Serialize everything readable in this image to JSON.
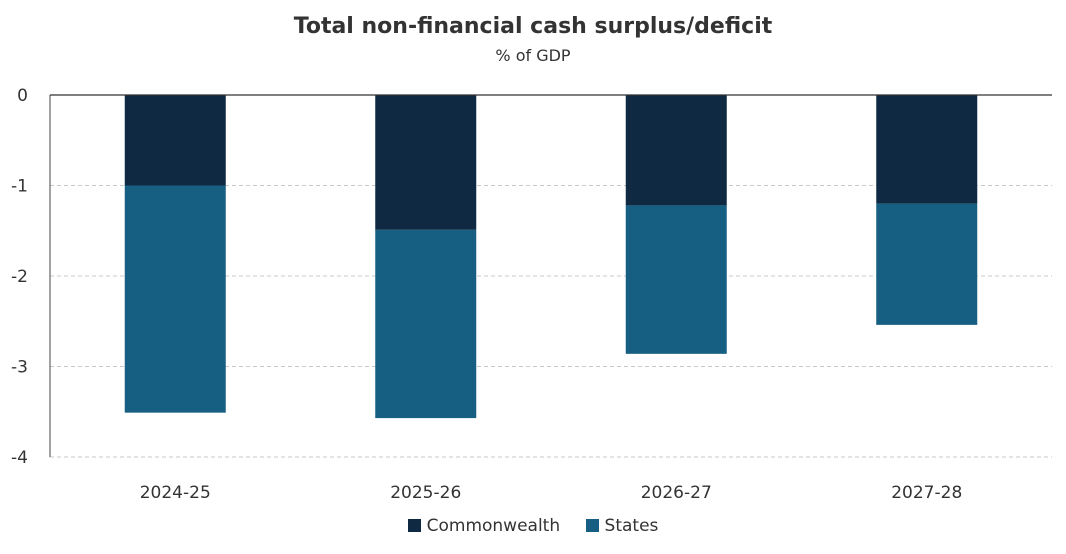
{
  "chart_data": {
    "type": "bar",
    "stacked": true,
    "title": "Total non-financial cash surplus/deficit",
    "subtitle": "% of GDP",
    "xlabel": "",
    "ylabel": "",
    "categories": [
      "2024-25",
      "2025-26",
      "2026-27",
      "2027-28"
    ],
    "series": [
      {
        "name": "Commonwealth",
        "color": "#0f2942",
        "values": [
          -1.0,
          -1.49,
          -1.22,
          -1.2
        ]
      },
      {
        "name": "States",
        "color": "#165f82",
        "values": [
          -2.51,
          -2.08,
          -1.64,
          -1.34
        ]
      }
    ],
    "ylim": [
      -4,
      0
    ],
    "yticks": [
      "0",
      "-1",
      "-2",
      "-3",
      "-4"
    ],
    "grid": true,
    "legend_position": "bottom"
  }
}
